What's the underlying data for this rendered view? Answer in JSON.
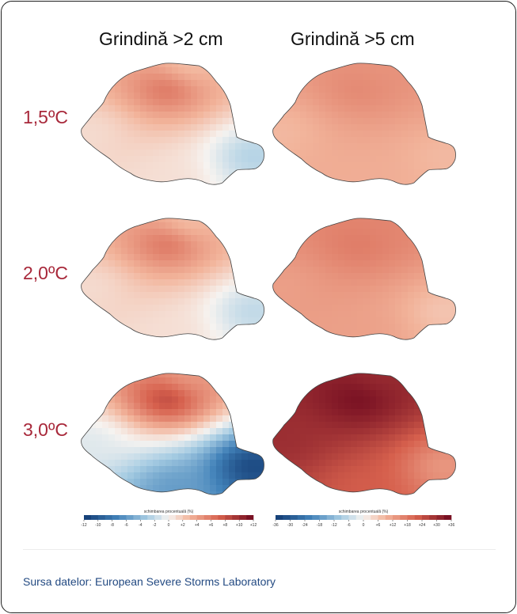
{
  "chart_data": {
    "type": "heatmap",
    "columns": [
      "Grindină >2 cm",
      "Grindină >5 cm"
    ],
    "rows": [
      "1,5ºC",
      "2,0ºC",
      "3,0ºC"
    ],
    "scales": [
      {
        "title": "schimbarea procentuală (%)",
        "ticks": [
          "-12",
          "-10",
          "-8",
          "-6",
          "-4",
          "-2",
          "0",
          "+2",
          "+4",
          "+6",
          "+8",
          "+10",
          "+12"
        ],
        "range": [
          -12,
          12
        ]
      },
      {
        "title": "schimbarea procentuală (%)",
        "ticks": [
          "-36",
          "-30",
          "-24",
          "-18",
          "-12",
          "-6",
          "0",
          "+6",
          "+12",
          "+18",
          "+24",
          "+30",
          "+36"
        ],
        "range": [
          -36,
          36
        ]
      }
    ],
    "panels": [
      {
        "row": 0,
        "col": 0,
        "center": 7,
        "north": 2,
        "south": 1,
        "east": -3,
        "west": 1
      },
      {
        "row": 0,
        "col": 1,
        "center": 16,
        "north": 14,
        "south": 10,
        "east": 8,
        "west": 8
      },
      {
        "row": 1,
        "col": 0,
        "center": 7,
        "north": 2,
        "south": 1,
        "east": -2.5,
        "west": 1
      },
      {
        "row": 1,
        "col": 1,
        "center": 18,
        "north": 16,
        "south": 12,
        "east": 6,
        "west": 12
      },
      {
        "row": 2,
        "col": 0,
        "center": 10,
        "north": 4,
        "south": -6,
        "east": -12,
        "west": -1
      },
      {
        "row": 2,
        "col": 1,
        "center": 36,
        "north": 30,
        "south": 22,
        "east": 12,
        "west": 30
      }
    ]
  },
  "footer": {
    "source": "Sursa datelor: European Severe Storms Laboratory"
  }
}
